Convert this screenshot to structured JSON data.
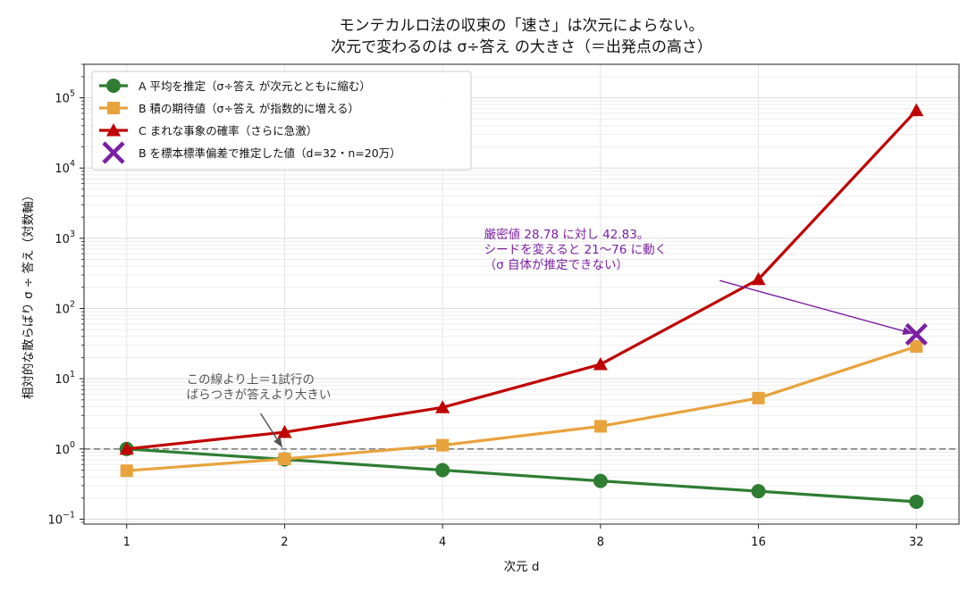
{
  "chart_data": {
    "type": "line",
    "title_lines": [
      "モンテカルロ法の収束の「速さ」は次元によらない。",
      "次元で変わるのは σ÷答え の大きさ（＝出発点の高さ）"
    ],
    "xlabel": "次元 d",
    "ylabel": "相対的な散らばり σ ÷ 答え（対数軸）",
    "x": [
      1,
      2,
      4,
      8,
      16,
      32
    ],
    "x_tick_labels": [
      "1",
      "2",
      "4",
      "8",
      "16",
      "32"
    ],
    "x_scale": "log2",
    "y_scale": "log10",
    "ylim": [
      0.085,
      300000
    ],
    "y_ticks": [
      {
        "value": 0.1,
        "base": "10",
        "exp": "−1"
      },
      {
        "value": 1,
        "base": "10",
        "exp": "0"
      },
      {
        "value": 10,
        "base": "10",
        "exp": "1"
      },
      {
        "value": 100,
        "base": "10",
        "exp": "2"
      },
      {
        "value": 1000,
        "base": "10",
        "exp": "3"
      },
      {
        "value": 10000,
        "base": "10",
        "exp": "4"
      },
      {
        "value": 100000,
        "base": "10",
        "exp": "5"
      }
    ],
    "grid": true,
    "legend_position": "top-left",
    "series": [
      {
        "name": "A 平均を推定（σ÷答え が次元とともに縮む）",
        "color": "#2e7d32",
        "marker": "circle",
        "values": [
          1.0,
          0.71,
          0.5,
          0.35,
          0.25,
          0.177
        ]
      },
      {
        "name": "B 積の期待値（σ÷答え が指数的に増える）",
        "color": "#e8a33d",
        "marker": "square",
        "values": [
          0.49,
          0.72,
          1.13,
          2.1,
          5.3,
          28.78
        ]
      },
      {
        "name": "C まれな事象の確率（さらに急激）",
        "color": "#c00000",
        "marker": "triangle",
        "values": [
          1.0,
          1.73,
          3.9,
          16,
          260,
          66000
        ]
      }
    ],
    "estimate_point": {
      "name": "B を標本標準偏差で推定した値（d=32・n=20万）",
      "color": "#7b1fa2",
      "marker": "x",
      "x": 32,
      "y": 42.83
    },
    "reference_line": {
      "y": 1,
      "style": "dashed",
      "color": "#888888"
    },
    "annotations": [
      {
        "lines": [
          "厳密値 28.78 に対し 42.83。",
          "シードを変えると 21〜76 に動く",
          "（σ 自体が推定できない）"
        ],
        "color": "#7b1fa2",
        "text_x": 4.8,
        "text_y": 1000,
        "arrow_from": [
          13.5,
          250
        ],
        "arrow_to": [
          31.5,
          44
        ]
      },
      {
        "lines": [
          "この線より上＝1試行の",
          "ばらつきが答えより大きい"
        ],
        "color": "#555555",
        "text_x": 1.3,
        "text_y": 8.5,
        "arrow_from": [
          1.8,
          3.2
        ],
        "arrow_to": [
          1.98,
          1.05
        ]
      }
    ]
  }
}
